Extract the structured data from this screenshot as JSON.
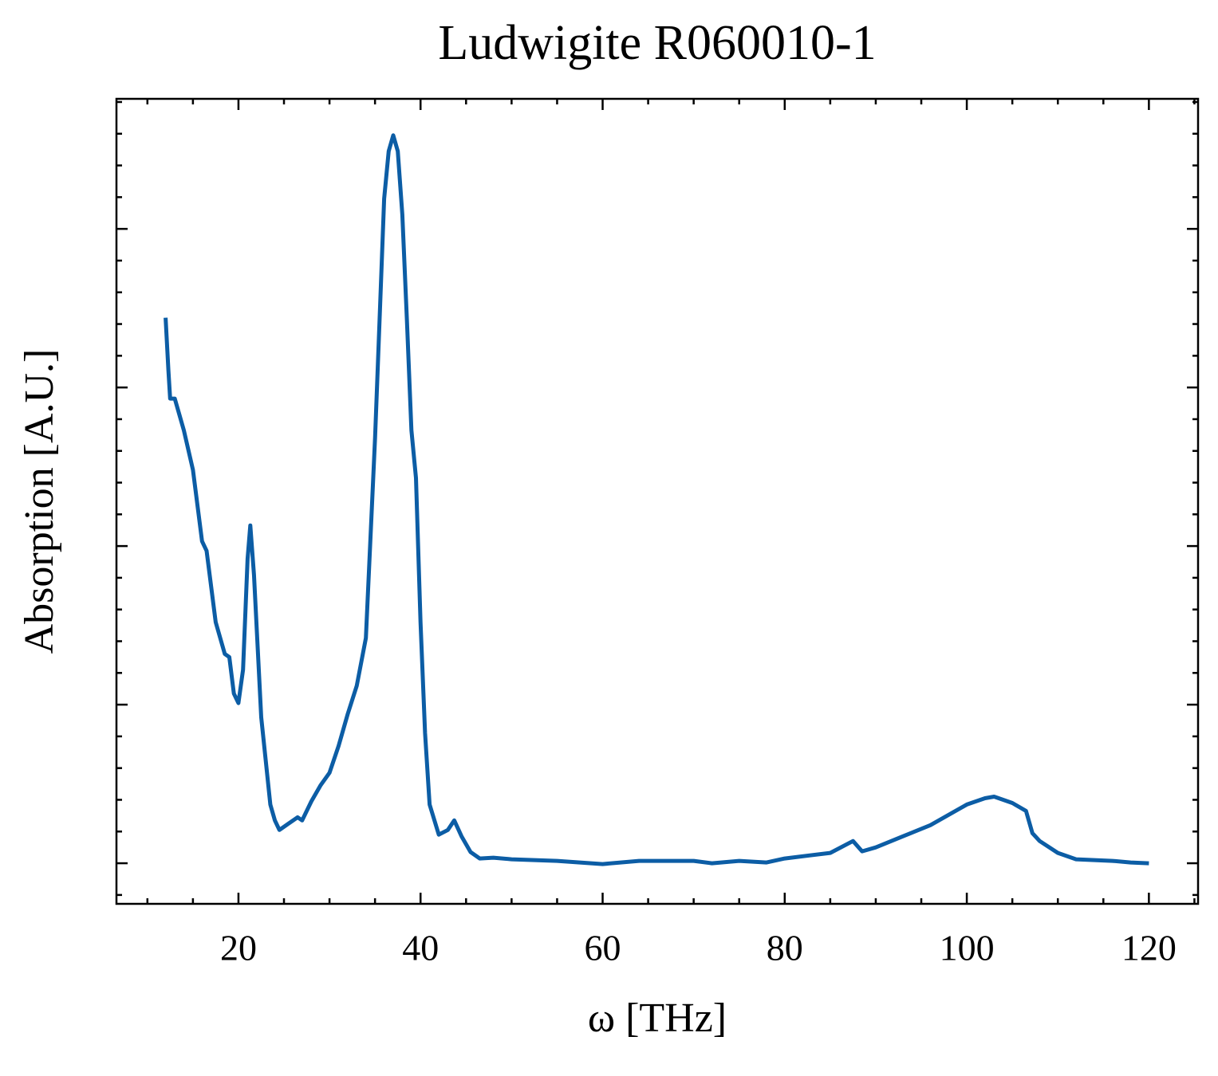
{
  "chart_data": {
    "type": "line",
    "title": "Ludwigite R060010-1",
    "xlabel": "ω [THz]",
    "ylabel": "Absorption [A.U.]",
    "x": [
      12,
      12.3,
      12.5,
      13,
      13.5,
      14,
      15,
      16,
      16.5,
      17.5,
      18.5,
      19,
      19.5,
      20,
      20.5,
      21,
      21.3,
      21.7,
      22.5,
      23.5,
      24,
      24.5,
      25.5,
      26.5,
      27,
      28,
      29,
      30,
      31,
      32,
      33,
      34,
      35,
      35.5,
      36,
      36.5,
      37,
      37.5,
      38,
      38.5,
      39,
      39.5,
      40,
      40.5,
      41,
      42,
      43,
      43.7,
      44.5,
      45.5,
      46.5,
      48,
      50,
      55,
      60,
      64,
      70,
      72,
      75,
      78,
      80,
      85,
      87.5,
      88.5,
      90,
      93,
      96,
      100,
      102,
      103,
      105,
      106.5,
      107.2,
      108,
      110,
      112,
      116,
      118,
      120
    ],
    "series": [
      {
        "name": "Ludwigite R060010-1",
        "color": "#0c5da5",
        "values": [
          3.44,
          3.11,
          2.93,
          2.93,
          2.83,
          2.73,
          2.48,
          2.03,
          1.97,
          1.52,
          1.32,
          1.3,
          1.07,
          1.01,
          1.22,
          1.92,
          2.13,
          1.82,
          0.92,
          0.37,
          0.27,
          0.21,
          0.25,
          0.29,
          0.27,
          0.39,
          0.49,
          0.57,
          0.74,
          0.94,
          1.12,
          1.42,
          2.68,
          3.43,
          4.19,
          4.49,
          4.59,
          4.49,
          4.09,
          3.43,
          2.73,
          2.43,
          1.52,
          0.82,
          0.37,
          0.18,
          0.21,
          0.27,
          0.17,
          0.07,
          0.03,
          0.035,
          0.025,
          0.015,
          -0.005,
          0.015,
          0.015,
          0,
          0.015,
          0.005,
          0.03,
          0.065,
          0.14,
          0.075,
          0.1,
          0.17,
          0.24,
          0.37,
          0.41,
          0.42,
          0.38,
          0.33,
          0.19,
          0.14,
          0.065,
          0.025,
          0.015,
          0.005,
          0
        ]
      }
    ],
    "xlim": [
      6.6,
      125.4
    ],
    "xticks": [
      20,
      40,
      60,
      80,
      100,
      120
    ],
    "xminorticks": [
      10,
      15,
      25,
      30,
      35,
      45,
      50,
      55,
      65,
      70,
      75,
      85,
      90,
      95,
      105,
      110,
      115,
      125
    ],
    "ylim": [
      -0.256,
      4.82
    ],
    "yticks": [
      0,
      1,
      2,
      3,
      4
    ],
    "yminorticks": [
      -0.2,
      0.2,
      0.4,
      0.6,
      0.8,
      1.2,
      1.4,
      1.6,
      1.8,
      2.2,
      2.4,
      2.6,
      2.8,
      3.2,
      3.4,
      3.6,
      3.8,
      4.2,
      4.4,
      4.6,
      4.8
    ],
    "ytick_labels": false,
    "grid": false
  }
}
